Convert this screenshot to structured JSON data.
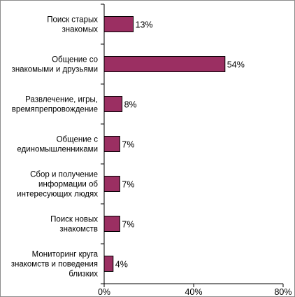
{
  "chart_data": {
    "type": "bar",
    "orientation": "horizontal",
    "categories": [
      [
        "Поиск старых",
        "знакомых"
      ],
      [
        "Общение со",
        "знакомыми и друзьями"
      ],
      [
        "Развлечение, игры,",
        "времяпрепровождение"
      ],
      [
        "Общение с",
        "единомышленниками"
      ],
      [
        "Сбор и получение",
        "информации об",
        "интересующих людях"
      ],
      [
        "Поиск новых",
        "знакомств"
      ],
      [
        "Мониторинг круга",
        "знакомств и поведения",
        "близких"
      ]
    ],
    "values": [
      13,
      54,
      8,
      7,
      7,
      7,
      4
    ],
    "value_labels": [
      "13%",
      "54%",
      "8%",
      "7%",
      "7%",
      "7%",
      "4%"
    ],
    "xlim": [
      0,
      80
    ],
    "x_ticks": [
      0,
      40,
      80
    ],
    "x_tick_labels": [
      "0%",
      "40%",
      "80%"
    ],
    "bar_color": "#9b2f62",
    "bar_edge_color": "#000000",
    "grid": false,
    "legend": "none"
  }
}
